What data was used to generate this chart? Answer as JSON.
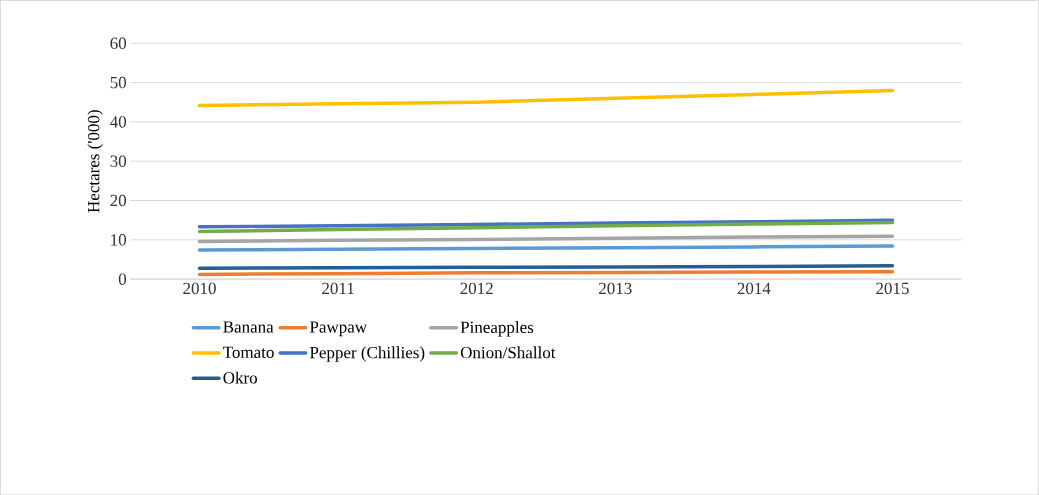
{
  "chart_data": {
    "type": "line",
    "ylabel": "Hectares ('000)",
    "categories": [
      "2010",
      "2011",
      "2012",
      "2013",
      "2014",
      "2015"
    ],
    "ylim": [
      0,
      60
    ],
    "yticks": [
      0,
      10,
      20,
      30,
      40,
      50,
      60
    ],
    "grid": "y",
    "legend": "bottom",
    "marker": "none",
    "line_style": "solid",
    "series": [
      {
        "name": "Banana",
        "color": "#5b9bd5",
        "values": [
          7.4,
          7.6,
          7.8,
          8.0,
          8.2,
          8.4
        ]
      },
      {
        "name": "Pawpaw",
        "color": "#ed7d31",
        "values": [
          1.2,
          1.4,
          1.6,
          1.7,
          1.8,
          1.9
        ]
      },
      {
        "name": "Pineapples",
        "color": "#a5a5a5",
        "values": [
          9.6,
          9.9,
          10.1,
          10.4,
          10.7,
          10.9
        ]
      },
      {
        "name": "Tomato",
        "color": "#ffc000",
        "values": [
          44.2,
          44.6,
          45.0,
          46.0,
          47.0,
          48.0
        ]
      },
      {
        "name": "Pepper (Chillies)",
        "color": "#4472c4",
        "values": [
          13.3,
          13.6,
          13.9,
          14.3,
          14.6,
          15.0
        ]
      },
      {
        "name": "Onion/Shallot",
        "color": "#70ad47",
        "values": [
          12.1,
          12.6,
          13.1,
          13.6,
          14.0,
          14.4
        ]
      },
      {
        "name": "Okro",
        "color": "#255e91",
        "values": [
          2.8,
          2.9,
          3.0,
          3.1,
          3.2,
          3.4
        ]
      }
    ]
  }
}
